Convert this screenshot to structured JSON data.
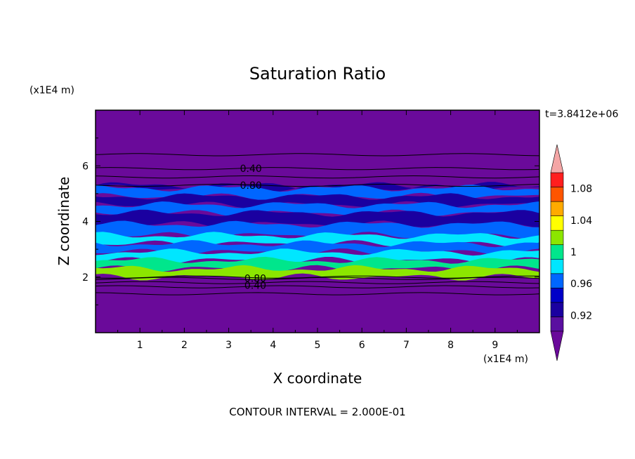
{
  "chart_data": {
    "type": "heatmap",
    "title": "Saturation Ratio",
    "xlabel": "X coordinate",
    "ylabel": "Z coordinate",
    "x_unit": "(x1E4 m)",
    "y_unit": "(x1E4 m)",
    "time_label": "t=3.8412e+06",
    "footer": "CONTOUR INTERVAL = 2.000E-01",
    "xlim": [
      0,
      10
    ],
    "ylim": [
      0,
      8
    ],
    "x_ticks": [
      1,
      2,
      3,
      4,
      5,
      6,
      7,
      8,
      9
    ],
    "y_ticks": [
      2,
      4,
      6
    ],
    "colorbar": {
      "levels": [
        0.9,
        0.92,
        0.94,
        0.96,
        0.98,
        1.0,
        1.02,
        1.04,
        1.06,
        1.08,
        1.1
      ],
      "labels": [
        "0.92",
        "0.96",
        "1",
        "1.04",
        "1.08"
      ],
      "label_values": [
        0.92,
        0.96,
        1.0,
        1.04,
        1.08
      ],
      "colors": [
        "#5a0fa0",
        "#1a00a0",
        "#0000c8",
        "#0066ff",
        "#00e6ff",
        "#00e68c",
        "#8ce600",
        "#ffff00",
        "#ffaa00",
        "#ff5500",
        "#ff1e1e"
      ],
      "under_color": "#6a0a9a",
      "over_color": "#f4a6a6"
    },
    "contour_labels": [
      {
        "text": "0.40",
        "x": 3.5,
        "z": 5.9
      },
      {
        "text": "0.80",
        "x": 3.5,
        "z": 5.3
      },
      {
        "text": "0.80",
        "x": 3.6,
        "z": 1.95
      },
      {
        "text": "0.40",
        "x": 3.6,
        "z": 1.7
      }
    ],
    "contour_lines_z": [
      6.4,
      5.9,
      5.6,
      5.3,
      2.0,
      1.95,
      1.8,
      1.65,
      1.4
    ],
    "bands": [
      {
        "z0": 5.3,
        "z1": 5.2,
        "level": 0.92
      },
      {
        "z0": 5.2,
        "z1": 4.9,
        "level": 0.96
      },
      {
        "z0": 4.9,
        "z1": 4.6,
        "level": 0.92
      },
      {
        "z0": 4.6,
        "z1": 4.3,
        "level": 0.96
      },
      {
        "z0": 4.3,
        "z1": 3.9,
        "level": 0.92
      },
      {
        "z0": 3.9,
        "z1": 3.5,
        "level": 0.96
      },
      {
        "z0": 3.5,
        "z1": 3.2,
        "level": 0.98
      },
      {
        "z0": 3.2,
        "z1": 2.9,
        "level": 0.96
      },
      {
        "z0": 2.9,
        "z1": 2.6,
        "level": 0.98
      },
      {
        "z0": 2.6,
        "z1": 2.3,
        "level": 1.0
      },
      {
        "z0": 2.3,
        "z1": 2.0,
        "level": 1.02
      }
    ],
    "background_level": 0.88
  }
}
